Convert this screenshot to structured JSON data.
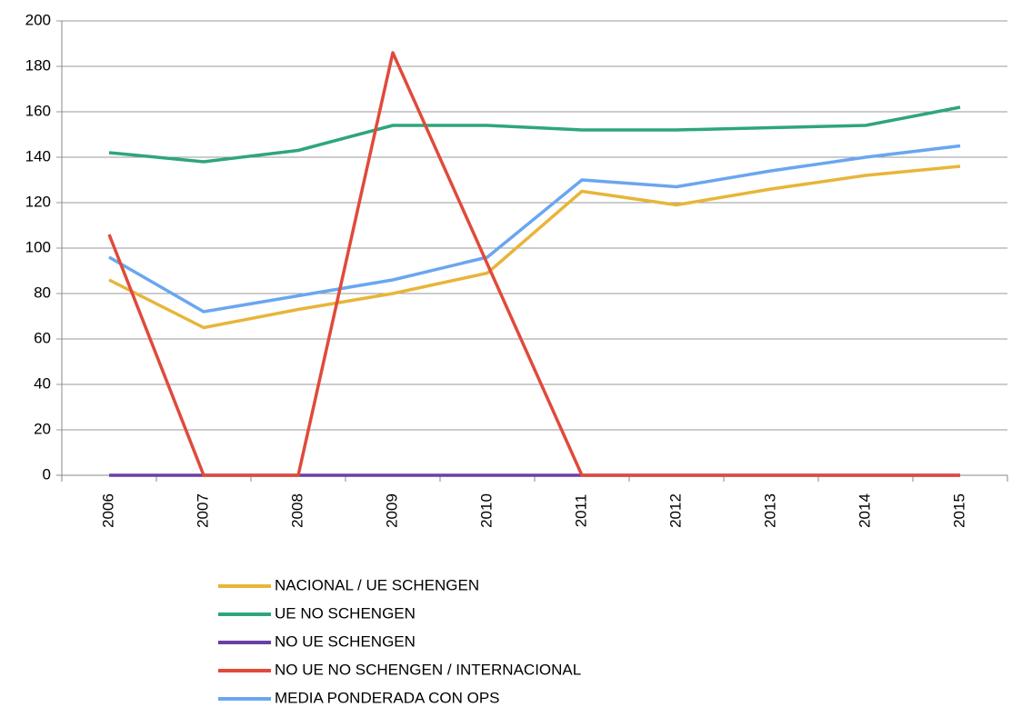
{
  "chart_data": {
    "type": "line",
    "categories": [
      "2006",
      "2007",
      "2008",
      "2009",
      "2010",
      "2011",
      "2012",
      "2013",
      "2014",
      "2015"
    ],
    "series": [
      {
        "name": "NACIONAL / UE SCHENGEN",
        "color": "#e8b53a",
        "values": [
          86,
          65,
          73,
          80,
          89,
          125,
          119,
          126,
          132,
          136
        ]
      },
      {
        "name": "UE NO SCHENGEN",
        "color": "#2ea67a",
        "values": [
          142,
          138,
          143,
          154,
          154,
          152,
          152,
          153,
          154,
          162
        ]
      },
      {
        "name": "NO UE SCHENGEN",
        "color": "#6a3fa6",
        "values": [
          0,
          0,
          0,
          0,
          0,
          0,
          0,
          0,
          0,
          0
        ]
      },
      {
        "name": "NO UE NO SCHENGEN / INTERNACIONAL",
        "color": "#e04a3b",
        "values": [
          106,
          0,
          0,
          186,
          93,
          0,
          0,
          0,
          0,
          0
        ]
      },
      {
        "name": "MEDIA PONDERADA CON OPS",
        "color": "#6aa6f0",
        "values": [
          96,
          72,
          79,
          86,
          96,
          130,
          127,
          134,
          140,
          145
        ]
      }
    ],
    "ylim": [
      0,
      200
    ],
    "yticks": [
      0,
      20,
      40,
      60,
      80,
      100,
      120,
      140,
      160,
      180,
      200
    ],
    "grid": true,
    "legend": "bottom"
  }
}
